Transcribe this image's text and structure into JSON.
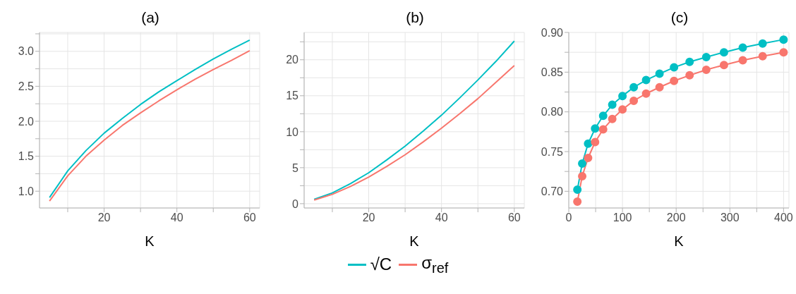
{
  "chart_data": [
    {
      "type": "line",
      "title": "(a)",
      "xlabel": "K",
      "x": [
        5,
        10,
        15,
        20,
        25,
        30,
        35,
        40,
        45,
        50,
        55,
        60
      ],
      "xlim": [
        2.25,
        62.75
      ],
      "xticks": [
        {
          "value": 10,
          "label": null
        },
        20,
        {
          "value": 30,
          "label": null
        },
        40,
        {
          "value": 50,
          "label": null
        },
        60
      ],
      "ylim": [
        0.76,
        3.27
      ],
      "yticks": [
        {
          "value": 1,
          "label": "1.0"
        },
        {
          "value": 1.25,
          "label": null
        },
        1.5,
        {
          "value": 1.75,
          "label": null
        },
        {
          "value": 2,
          "label": "2.0"
        },
        {
          "value": 2.25,
          "label": null
        },
        2.5,
        {
          "value": 2.75,
          "label": null
        },
        {
          "value": 3,
          "label": "3.0"
        },
        {
          "value": 3.25,
          "label": null
        }
      ],
      "grid": true,
      "marker": "none",
      "legend": "bottom",
      "series": [
        {
          "name": "√C",
          "color": "#00bfc4",
          "values": [
            0.91,
            1.29,
            1.58,
            1.83,
            2.04,
            2.24,
            2.42,
            2.58,
            2.74,
            2.89,
            3.03,
            3.16
          ]
        },
        {
          "name": "σ$_{ref}$",
          "color": "#f8766d",
          "values": [
            0.86,
            1.22,
            1.5,
            1.73,
            1.94,
            2.12,
            2.29,
            2.45,
            2.6,
            2.74,
            2.87,
            3.01
          ]
        }
      ]
    },
    {
      "type": "line",
      "title": "(b)",
      "xlabel": "K",
      "x": [
        5,
        10,
        15,
        20,
        25,
        30,
        35,
        40,
        45,
        50,
        55,
        60
      ],
      "xlim": [
        2.25,
        62.75
      ],
      "xticks": [
        {
          "value": 10,
          "label": null
        },
        20,
        {
          "value": 30,
          "label": null
        },
        40,
        {
          "value": 50,
          "label": null
        },
        60
      ],
      "ylim": [
        -0.6,
        23.8
      ],
      "yticks": [
        0,
        {
          "value": 2.5,
          "label": null
        },
        5,
        {
          "value": 7.5,
          "label": null
        },
        10,
        {
          "value": 12.5,
          "label": null
        },
        15,
        {
          "value": 17.5,
          "label": null
        },
        20,
        {
          "value": 22.5,
          "label": null
        }
      ],
      "grid": true,
      "marker": "none",
      "series": [
        {
          "color": "#00bfc4",
          "values": [
            0.6,
            1.5,
            2.8,
            4.3,
            6.1,
            8.0,
            10.1,
            12.3,
            14.7,
            17.2,
            19.8,
            22.6
          ]
        },
        {
          "color": "#f8766d",
          "values": [
            0.5,
            1.3,
            2.4,
            3.7,
            5.2,
            6.8,
            8.6,
            10.5,
            12.5,
            14.6,
            16.9,
            19.2
          ]
        }
      ]
    },
    {
      "type": "line",
      "title": "(c)",
      "xlabel": "K",
      "x": [
        16,
        25,
        36,
        49,
        64,
        81,
        100,
        121,
        144,
        169,
        196,
        225,
        256,
        289,
        324,
        361,
        400
      ],
      "xlim": [
        0,
        410
      ],
      "xticks": [
        0,
        {
          "value": 50,
          "label": null
        },
        100,
        {
          "value": 150,
          "label": null
        },
        200,
        {
          "value": 250,
          "label": null
        },
        300,
        {
          "value": 350,
          "label": null
        },
        400
      ],
      "ylim": [
        0.679,
        0.9
      ],
      "yticks": [
        {
          "value": 0.7,
          "label": "0.70"
        },
        {
          "value": 0.725,
          "label": null
        },
        0.75,
        {
          "value": 0.775,
          "label": null
        },
        {
          "value": 0.8,
          "label": "0.80"
        },
        {
          "value": 0.825,
          "label": null
        },
        0.85,
        {
          "value": 0.875,
          "label": null
        },
        {
          "value": 0.9,
          "label": "0.90"
        }
      ],
      "grid": true,
      "marker": "circle",
      "series": [
        {
          "color": "#00bfc4",
          "values": [
            0.702,
            0.735,
            0.76,
            0.779,
            0.795,
            0.809,
            0.82,
            0.831,
            0.84,
            0.848,
            0.856,
            0.863,
            0.869,
            0.875,
            0.881,
            0.886,
            0.891
          ]
        },
        {
          "color": "#f8766d",
          "values": [
            0.687,
            0.719,
            0.742,
            0.762,
            0.778,
            0.791,
            0.803,
            0.814,
            0.823,
            0.831,
            0.839,
            0.846,
            0.853,
            0.859,
            0.865,
            0.87,
            0.875
          ]
        }
      ]
    }
  ]
}
